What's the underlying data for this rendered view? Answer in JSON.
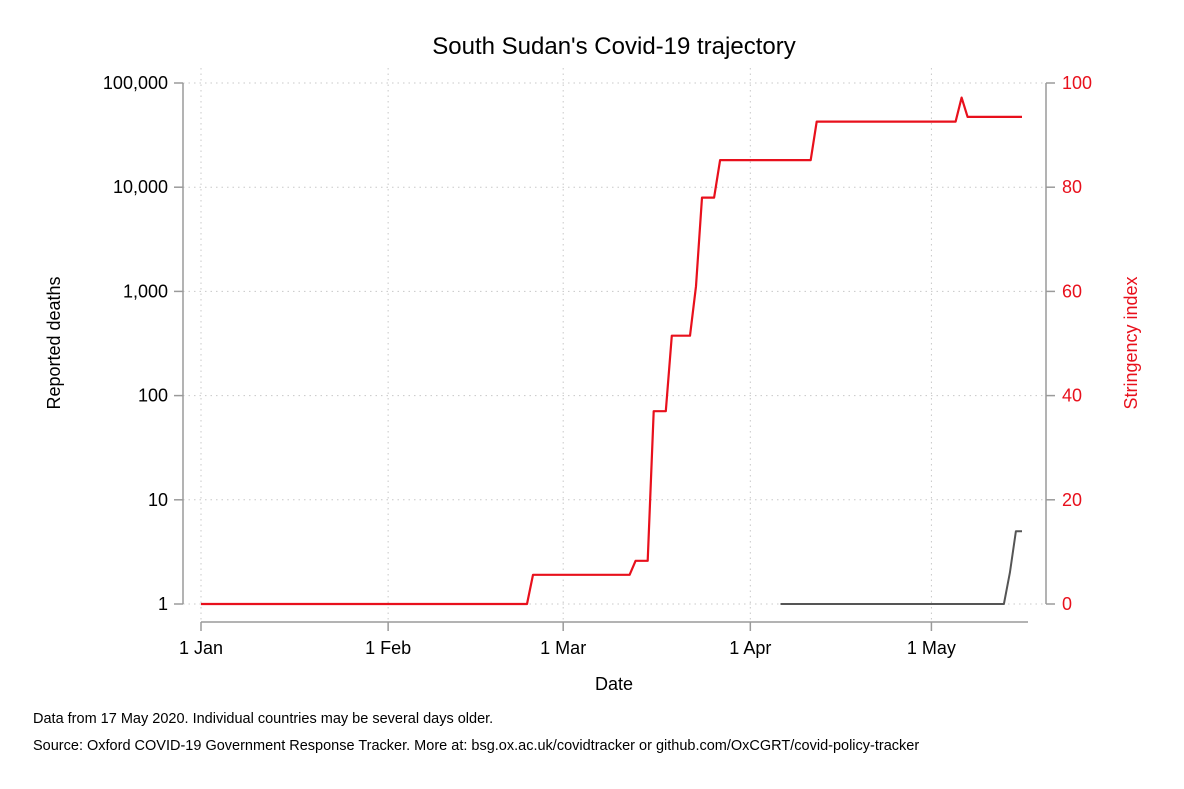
{
  "chart_data": {
    "type": "line",
    "title": "South Sudan's Covid-19 trajectory",
    "xlabel": "Date",
    "ylabel_left": "Reported deaths",
    "ylabel_right": "Stringency index",
    "x_ticks": [
      "1 Jan",
      "1 Feb",
      "1 Mar",
      "1 Apr",
      "1 May"
    ],
    "x_tick_dates": [
      "2020-01-01",
      "2020-02-01",
      "2020-03-01",
      "2020-04-01",
      "2020-05-01"
    ],
    "x_range": [
      "2020-01-01",
      "2020-05-17"
    ],
    "y_left_scale": "log",
    "y_left_ticks": [
      1,
      10,
      100,
      1000,
      10000,
      100000
    ],
    "y_left_tick_labels": [
      "1",
      "10",
      "100",
      "1,000",
      "10,000",
      "100,000"
    ],
    "y_left_range": [
      1,
      100000
    ],
    "y_right_ticks": [
      0,
      20,
      40,
      60,
      80,
      100
    ],
    "y_right_tick_labels": [
      "0",
      "20",
      "40",
      "60",
      "80",
      "100"
    ],
    "y_right_range": [
      0,
      100
    ],
    "grid": true,
    "series": [
      {
        "axis": "right",
        "color": "#e8101c",
        "step": true,
        "points": [
          [
            "2020-01-01",
            0
          ],
          [
            "2020-02-24",
            0
          ],
          [
            "2020-02-25",
            5.6
          ],
          [
            "2020-03-12",
            5.6
          ],
          [
            "2020-03-13",
            8.3
          ],
          [
            "2020-03-15",
            8.3
          ],
          [
            "2020-03-16",
            37
          ],
          [
            "2020-03-18",
            37
          ],
          [
            "2020-03-19",
            51.5
          ],
          [
            "2020-03-22",
            51.5
          ],
          [
            "2020-03-23",
            61
          ],
          [
            "2020-03-24",
            78
          ],
          [
            "2020-03-26",
            78
          ],
          [
            "2020-03-27",
            85.2
          ],
          [
            "2020-04-11",
            85.2
          ],
          [
            "2020-04-12",
            92.6
          ],
          [
            "2020-05-05",
            92.6
          ],
          [
            "2020-05-06",
            97.2
          ],
          [
            "2020-05-07",
            93.5
          ],
          [
            "2020-05-16",
            93.5
          ]
        ]
      },
      {
        "axis": "left",
        "color": "#555555",
        "step": true,
        "points": [
          [
            "2020-04-06",
            1
          ],
          [
            "2020-05-13",
            1
          ],
          [
            "2020-05-14",
            2
          ],
          [
            "2020-05-15",
            5
          ],
          [
            "2020-05-16",
            5
          ]
        ]
      }
    ]
  },
  "footnotes": {
    "line1": "Data from 17 May 2020. Individual countries may be several days older.",
    "line2": "Source: Oxford COVID-19 Government Response Tracker. More at: bsg.ox.ac.uk/covidtracker or github.com/OxCGRT/covid-policy-tracker"
  },
  "colors": {
    "stringency": "#e8101c",
    "deaths": "#555555",
    "axis": "#9a9a9a",
    "grid": "#c8c8c8"
  }
}
